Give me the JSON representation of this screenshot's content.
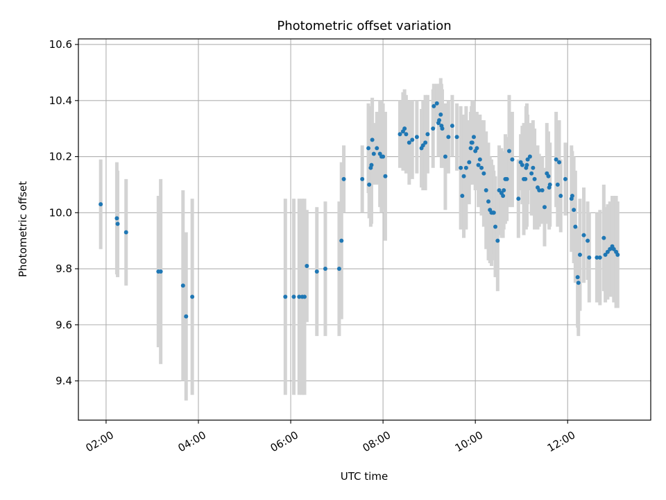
{
  "chart_data": {
    "type": "scatter",
    "title": "Photometric offset variation",
    "xlabel": "UTC time",
    "ylabel": "Photometric offset",
    "xlim": [
      "01:24",
      "13:48"
    ],
    "ylim": [
      9.26,
      10.62
    ],
    "x_tick_labels": [
      "02:00",
      "04:00",
      "06:00",
      "08:00",
      "10:00",
      "12:00"
    ],
    "y_tick_values": [
      9.4,
      9.6,
      9.8,
      10.0,
      10.2,
      10.4,
      10.6
    ],
    "y_tick_labels": [
      "9.4",
      "9.6",
      "9.8",
      "10.0",
      "10.2",
      "10.4",
      "10.6"
    ],
    "grid": true,
    "colors": {
      "point": "#1f77b4",
      "errorbar": "#d3d3d3",
      "grid": "#b0b0b0"
    },
    "series": [
      {
        "x": [
          "01:53",
          "02:14",
          "02:15",
          "02:26",
          "03:08",
          "03:11",
          "03:40",
          "03:44",
          "03:52",
          "05:53",
          "06:04",
          "06:11",
          "06:15",
          "06:18",
          "06:21",
          "06:34",
          "06:45",
          "07:03",
          "07:06",
          "07:09",
          "07:33",
          "07:41",
          "07:42",
          "07:44",
          "07:45",
          "07:46",
          "07:48",
          "07:52",
          "07:56",
          "07:58",
          "08:00",
          "08:03",
          "08:22",
          "08:26",
          "08:28",
          "08:30",
          "08:34",
          "08:38",
          "08:44",
          "08:50",
          "08:52",
          "08:55",
          "08:58",
          "09:05",
          "09:06",
          "09:10",
          "09:12",
          "09:13",
          "09:15",
          "09:16",
          "09:17",
          "09:21",
          "09:25",
          "09:30",
          "09:36",
          "09:41",
          "09:43",
          "09:45",
          "09:48",
          "09:52",
          "09:54",
          "09:55",
          "09:56",
          "09:58",
          "10:00",
          "10:02",
          "10:04",
          "10:06",
          "10:08",
          "10:11",
          "10:14",
          "10:17",
          "10:19",
          "10:21",
          "10:23",
          "10:24",
          "10:26",
          "10:29",
          "10:31",
          "10:34",
          "10:36",
          "10:37",
          "10:39",
          "10:41",
          "10:44",
          "10:48",
          "10:56",
          "10:59",
          "11:01",
          "11:03",
          "11:05",
          "11:06",
          "11:07",
          "11:08",
          "11:11",
          "11:13",
          "11:15",
          "11:17",
          "11:21",
          "11:23",
          "11:27",
          "11:30",
          "11:33",
          "11:35",
          "11:36",
          "11:37",
          "11:45",
          "11:47",
          "11:49",
          "11:51",
          "11:57",
          "12:05",
          "12:06",
          "12:08",
          "12:10",
          "12:13",
          "12:14",
          "12:16",
          "12:21",
          "12:26",
          "12:28",
          "12:38",
          "12:42",
          "12:47",
          "12:49",
          "12:52",
          "12:55",
          "12:58",
          "13:00",
          "13:03",
          "13:05"
        ],
        "y": [
          10.03,
          9.98,
          9.96,
          9.93,
          9.79,
          9.79,
          9.74,
          9.63,
          9.7,
          9.7,
          9.7,
          9.7,
          9.7,
          9.7,
          9.81,
          9.79,
          9.8,
          9.8,
          9.9,
          10.12,
          10.12,
          10.23,
          10.1,
          10.16,
          10.17,
          10.26,
          10.21,
          10.23,
          10.21,
          10.2,
          10.2,
          10.13,
          10.28,
          10.29,
          10.3,
          10.28,
          10.25,
          10.26,
          10.27,
          10.23,
          10.24,
          10.25,
          10.28,
          10.3,
          10.38,
          10.39,
          10.32,
          10.33,
          10.35,
          10.31,
          10.3,
          10.2,
          10.27,
          10.31,
          10.27,
          10.16,
          10.06,
          10.13,
          10.16,
          10.18,
          10.23,
          10.25,
          10.25,
          10.27,
          10.22,
          10.23,
          10.17,
          10.19,
          10.16,
          10.14,
          10.08,
          10.04,
          10.01,
          10.0,
          10.0,
          10.0,
          9.95,
          9.9,
          10.08,
          10.07,
          10.06,
          10.08,
          10.12,
          10.12,
          10.22,
          10.19,
          10.05,
          10.18,
          10.17,
          10.12,
          10.12,
          10.16,
          10.17,
          10.19,
          10.2,
          10.14,
          10.16,
          10.12,
          10.09,
          10.08,
          10.08,
          10.02,
          10.14,
          10.13,
          10.09,
          10.1,
          10.19,
          10.1,
          10.18,
          10.06,
          10.12,
          10.05,
          10.06,
          10.01,
          9.95,
          9.77,
          9.75,
          9.85,
          9.92,
          9.9,
          9.84,
          9.84,
          9.84,
          9.91,
          9.85,
          9.86,
          9.87,
          9.88,
          9.87,
          9.86,
          9.85
        ],
        "error": [
          0.16,
          0.2,
          0.19,
          0.19,
          0.27,
          0.33,
          0.34,
          0.3,
          0.35,
          0.35,
          0.35,
          0.35,
          0.35,
          0.35,
          0.2,
          0.23,
          0.24,
          0.24,
          0.28,
          0.12,
          0.12,
          0.16,
          0.12,
          0.21,
          0.21,
          0.15,
          0.11,
          0.13,
          0.19,
          0.2,
          0.19,
          0.23,
          0.12,
          0.14,
          0.14,
          0.14,
          0.15,
          0.14,
          0.13,
          0.14,
          0.16,
          0.17,
          0.14,
          0.14,
          0.08,
          0.07,
          0.12,
          0.13,
          0.13,
          0.15,
          0.14,
          0.19,
          0.13,
          0.11,
          0.12,
          0.22,
          0.12,
          0.22,
          0.22,
          0.15,
          0.13,
          0.13,
          0.15,
          0.13,
          0.14,
          0.13,
          0.15,
          0.16,
          0.17,
          0.19,
          0.21,
          0.21,
          0.19,
          0.19,
          0.17,
          0.15,
          0.18,
          0.18,
          0.16,
          0.16,
          0.15,
          0.14,
          0.16,
          0.15,
          0.2,
          0.17,
          0.14,
          0.1,
          0.14,
          0.2,
          0.18,
          0.22,
          0.22,
          0.16,
          0.12,
          0.15,
          0.17,
          0.18,
          0.15,
          0.13,
          0.12,
          0.14,
          0.18,
          0.16,
          0.15,
          0.15,
          0.17,
          0.15,
          0.15,
          0.13,
          0.13,
          0.19,
          0.16,
          0.19,
          0.2,
          0.18,
          0.19,
          0.2,
          0.17,
          0.14,
          0.16,
          0.16,
          0.17,
          0.19,
          0.17,
          0.17,
          0.17,
          0.18,
          0.19,
          0.2,
          0.19
        ]
      }
    ]
  }
}
